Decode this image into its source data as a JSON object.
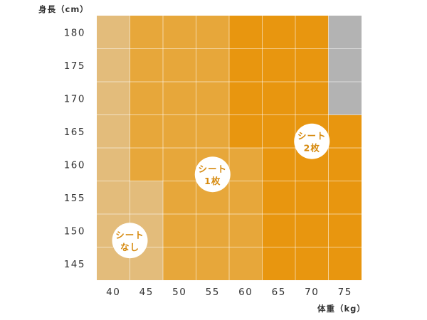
{
  "chart_data": {
    "type": "heatmap",
    "y_title": "身長（cm）",
    "x_title": "体重（kg）",
    "x_ticks": [
      "40",
      "45",
      "50",
      "55",
      "60",
      "65",
      "70",
      "75"
    ],
    "y_ticks": [
      "180",
      "175",
      "170",
      "165",
      "160",
      "155",
      "150",
      "145"
    ],
    "x": [
      40,
      45,
      50,
      55,
      60,
      65,
      70,
      75
    ],
    "y": [
      180,
      175,
      170,
      165,
      160,
      155,
      150,
      145
    ],
    "category_colors": {
      "none": "#e3bc7b",
      "one": "#e7a73a",
      "two": "#e8960f",
      "na": "#b3b3b3"
    },
    "grid_lines": true,
    "cells": [
      [
        "none",
        "one",
        "one",
        "one",
        "two",
        "two",
        "two",
        "na"
      ],
      [
        "none",
        "one",
        "one",
        "one",
        "two",
        "two",
        "two",
        "na"
      ],
      [
        "none",
        "one",
        "one",
        "one",
        "two",
        "two",
        "two",
        "na"
      ],
      [
        "none",
        "one",
        "one",
        "one",
        "two",
        "two",
        "two",
        "two"
      ],
      [
        "none",
        "one",
        "one",
        "one",
        "one",
        "two",
        "two",
        "two"
      ],
      [
        "none",
        "none",
        "one",
        "one",
        "one",
        "two",
        "two",
        "two"
      ],
      [
        "none",
        "none",
        "one",
        "one",
        "one",
        "two",
        "two",
        "two"
      ],
      [
        "none",
        "none",
        "one",
        "one",
        "one",
        "two",
        "two",
        "two"
      ]
    ],
    "annotations": [
      {
        "key": "none",
        "line1": "シート",
        "line2": "なし",
        "x": 42.5,
        "y": 148.5
      },
      {
        "key": "one",
        "line1": "シート",
        "line2": "1枚",
        "x": 55,
        "y": 158.5
      },
      {
        "key": "two",
        "line1": "シート",
        "line2": "2枚",
        "x": 70,
        "y": 163.5
      }
    ],
    "annotation_text_color": "#d68a0f"
  }
}
